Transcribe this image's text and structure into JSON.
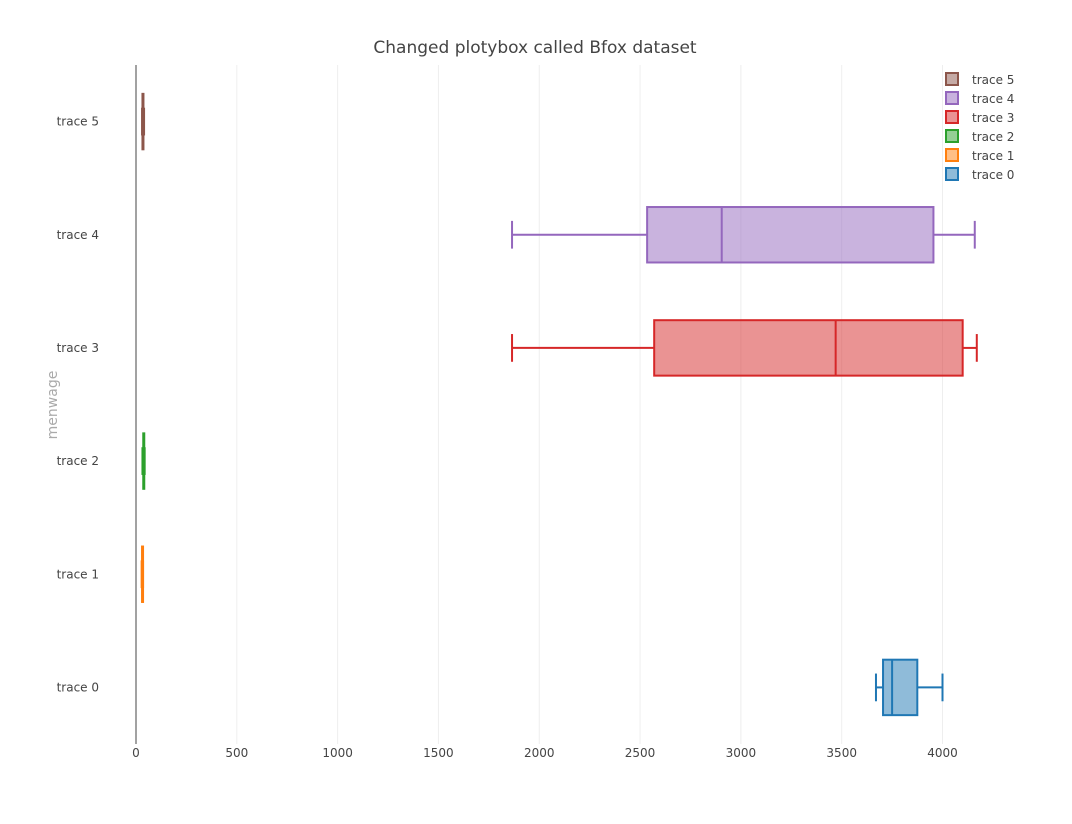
{
  "chart_data": {
    "type": "box",
    "orientation": "horizontal",
    "title": "Changed plotybox called Bfox dataset",
    "ylabel": "menwage",
    "xlabel": "",
    "xlim": [
      0,
      4300
    ],
    "xticks": [
      0,
      500,
      1000,
      1500,
      2000,
      2500,
      3000,
      3500,
      4000
    ],
    "grid": true,
    "legend_position": "top-right",
    "series": [
      {
        "name": "trace 0",
        "color": "#1f77b4",
        "min": 3670,
        "q1": 3705,
        "median": 3750,
        "q3": 3875,
        "max": 4000
      },
      {
        "name": "trace 1",
        "color": "#ff7f0e",
        "min": 28,
        "q1": 30,
        "median": 31,
        "q3": 33,
        "max": 35
      },
      {
        "name": "trace 2",
        "color": "#2ca02c",
        "min": 32,
        "q1": 36,
        "median": 38,
        "q3": 41,
        "max": 43
      },
      {
        "name": "trace 3",
        "color": "#d62728",
        "min": 1865,
        "q1": 2570,
        "median": 3470,
        "q3": 4100,
        "max": 4170
      },
      {
        "name": "trace 4",
        "color": "#9467bd",
        "min": 1865,
        "q1": 2535,
        "median": 2905,
        "q3": 3955,
        "max": 4160
      },
      {
        "name": "trace 5",
        "color": "#8c564b",
        "min": 30,
        "q1": 32,
        "median": 34,
        "q3": 37,
        "max": 40
      }
    ]
  }
}
